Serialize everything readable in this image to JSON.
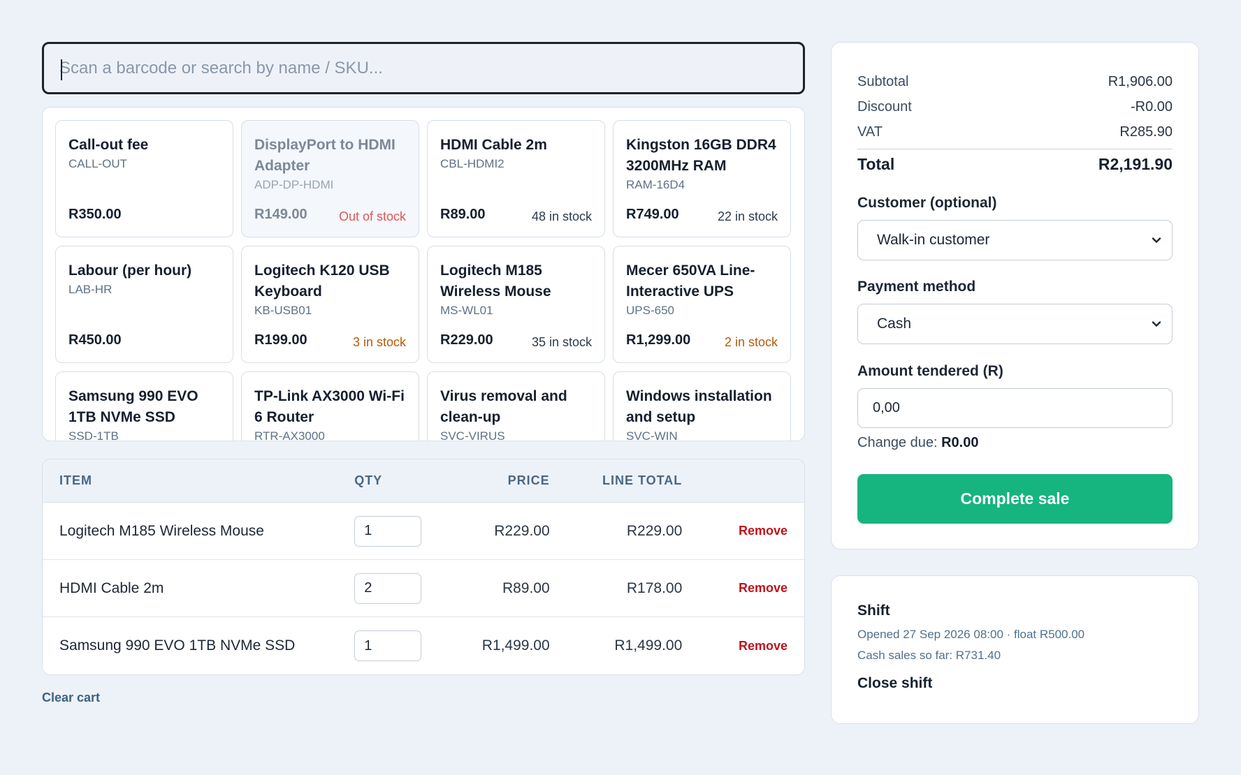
{
  "search": {
    "placeholder": "Scan a barcode or search by name / SKU..."
  },
  "products": [
    {
      "name": "Call-out fee",
      "sku": "CALL-OUT",
      "price": "R350.00",
      "stock": "",
      "stock_state": "none"
    },
    {
      "name": "DisplayPort to HDMI Adapter",
      "sku": "ADP-DP-HDMI",
      "price": "R149.00",
      "stock": "Out of stock",
      "stock_state": "out"
    },
    {
      "name": "HDMI Cable 2m",
      "sku": "CBL-HDMI2",
      "price": "R89.00",
      "stock": "48 in stock",
      "stock_state": "ok"
    },
    {
      "name": "Kingston 16GB DDR4 3200MHz RAM",
      "sku": "RAM-16D4",
      "price": "R749.00",
      "stock": "22 in stock",
      "stock_state": "ok"
    },
    {
      "name": "Labour (per hour)",
      "sku": "LAB-HR",
      "price": "R450.00",
      "stock": "",
      "stock_state": "none"
    },
    {
      "name": "Logitech K120 USB Keyboard",
      "sku": "KB-USB01",
      "price": "R199.00",
      "stock": "3 in stock",
      "stock_state": "low"
    },
    {
      "name": "Logitech M185 Wireless Mouse",
      "sku": "MS-WL01",
      "price": "R229.00",
      "stock": "35 in stock",
      "stock_state": "ok"
    },
    {
      "name": "Mecer 650VA Line-Interactive UPS",
      "sku": "UPS-650",
      "price": "R1,299.00",
      "stock": "2 in stock",
      "stock_state": "low"
    },
    {
      "name": "Samsung 990 EVO 1TB NVMe SSD",
      "sku": "SSD-1TB",
      "price": "",
      "stock": "",
      "stock_state": "none"
    },
    {
      "name": "TP-Link AX3000 Wi-Fi 6 Router",
      "sku": "RTR-AX3000",
      "price": "",
      "stock": "",
      "stock_state": "none"
    },
    {
      "name": "Virus removal and clean-up",
      "sku": "SVC-VIRUS",
      "price": "",
      "stock": "",
      "stock_state": "none"
    },
    {
      "name": "Windows installation and setup",
      "sku": "SVC-WIN",
      "price": "",
      "stock": "",
      "stock_state": "none"
    }
  ],
  "cart": {
    "headers": {
      "item": "ITEM",
      "qty": "QTY",
      "price": "PRICE",
      "line_total": "LINE TOTAL"
    },
    "rows": [
      {
        "item": "Logitech M185 Wireless Mouse",
        "qty": "1",
        "price": "R229.00",
        "line_total": "R229.00",
        "action": "Remove"
      },
      {
        "item": "HDMI Cable 2m",
        "qty": "2",
        "price": "R89.00",
        "line_total": "R178.00",
        "action": "Remove"
      },
      {
        "item": "Samsung 990 EVO 1TB NVMe SSD",
        "qty": "1",
        "price": "R1,499.00",
        "line_total": "R1,499.00",
        "action": "Remove"
      }
    ],
    "clear_label": "Clear cart"
  },
  "summary": {
    "subtotal_label": "Subtotal",
    "subtotal": "R1,906.00",
    "discount_label": "Discount",
    "discount": "-R0.00",
    "vat_label": "VAT",
    "vat": "R285.90",
    "total_label": "Total",
    "total": "R2,191.90",
    "customer_label": "Customer (optional)",
    "customer_value": "Walk-in customer",
    "payment_label": "Payment method",
    "payment_value": "Cash",
    "tendered_label": "Amount tendered (R)",
    "tendered_value": "0,00",
    "change_label": "Change due:",
    "change_value": "R0.00",
    "complete_label": "Complete sale"
  },
  "shift": {
    "title": "Shift",
    "opened": "Opened 27 Sep 2026 08:00 · float R500.00",
    "cash_sales": "Cash sales so far: R731.40",
    "close_label": "Close shift"
  },
  "colors": {
    "accent": "#16b47f",
    "danger": "#c0141c",
    "low_stock": "#b45a09",
    "out_of_stock": "#e05656"
  }
}
